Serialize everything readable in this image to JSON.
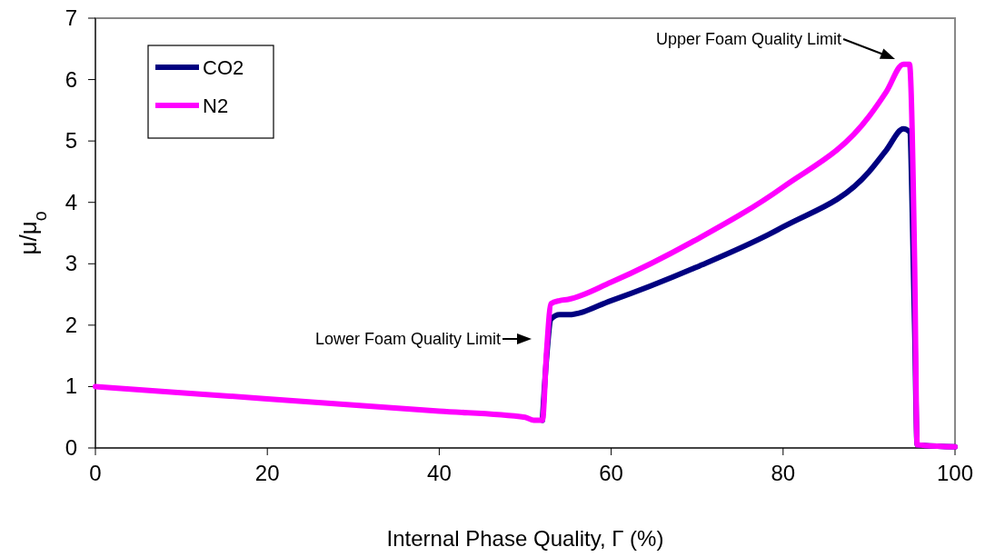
{
  "chart_data": {
    "type": "line",
    "xlabel": "Internal Phase Quality, Γ (%)",
    "ylabel": "μ/μ$_{o}$",
    "xlim": [
      0,
      100
    ],
    "xticks": [
      0,
      20,
      40,
      60,
      80,
      100
    ],
    "ylim": [
      0,
      7
    ],
    "yticks": [
      0,
      1,
      2,
      3,
      4,
      5,
      6,
      7
    ],
    "legend": "top left",
    "marker": "none",
    "line_style": "solid",
    "grid": false,
    "x": [
      0,
      20,
      40,
      50,
      51,
      52,
      52.5,
      53,
      54,
      55,
      60,
      70,
      80,
      90,
      92,
      94,
      94.7,
      95.3,
      95.6,
      100
    ],
    "series": [
      {
        "name": "CO2",
        "color": "#000080",
        "values": [
          null,
          null,
          null,
          null,
          null,
          0.45,
          1.5,
          2.1,
          2.17,
          2.17,
          2.4,
          2.95,
          3.6,
          4.5,
          4.85,
          5.2,
          5.15,
          2,
          0.05,
          0.02
        ]
      },
      {
        "name": "N2",
        "color": "#ff00ff",
        "values": [
          1,
          0.8,
          0.6,
          0.5,
          0.45,
          0.45,
          1.6,
          2.35,
          2.4,
          2.42,
          2.7,
          3.4,
          4.25,
          5.4,
          5.8,
          6.25,
          6.25,
          3,
          0.05,
          0.02
        ]
      }
    ],
    "annotations": [
      "Lower Foam Quality Limit",
      "Upper Foam Quality Limit"
    ]
  }
}
